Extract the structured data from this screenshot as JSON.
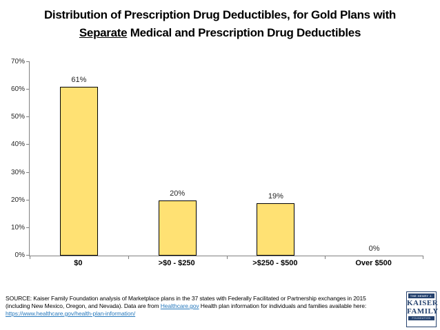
{
  "title": {
    "line1": "Distribution of Prescription Drug Deductibles, for Gold Plans with",
    "line2_underlined": "Separate",
    "line2_rest": " Medical and Prescription Drug Deductibles"
  },
  "chart_data": {
    "type": "bar",
    "categories": [
      "$0",
      ">$0 - $250",
      ">$250 - $500",
      "Over $500"
    ],
    "values": [
      61,
      20,
      19,
      0
    ],
    "data_labels": [
      "61%",
      "20%",
      "19%",
      "0%"
    ],
    "title": "Distribution of Prescription Drug Deductibles, for Gold Plans with Separate Medical and Prescription Drug Deductibles",
    "xlabel": "",
    "ylabel": "",
    "ylim": [
      0,
      70
    ],
    "ytick_step": 10,
    "ytick_labels": [
      "0%",
      "10%",
      "20%",
      "30%",
      "40%",
      "50%",
      "60%",
      "70%"
    ],
    "grid": false,
    "legend": "none",
    "bar_color": "#FFE173",
    "bar_border_color": "#000000",
    "axis_color": "#7F7F7F"
  },
  "source": {
    "line1": "SOURCE: Kaiser Family Foundation analysis of Marketplace plans in the 37 states with Federally Facilitated or Partnership exchanges in 2015",
    "line2_before_link": "(including New Mexico, Oregon, and Nevada). Data are from ",
    "line2_link": "Healthcare.gov",
    "line2_after_link": " Health plan information for individuals and families available here:",
    "line3_link": "https://www.healthcare.gov/health-plan-information/",
    "link_color": "#2779BD"
  },
  "logo": {
    "top": "THE HENRY J.",
    "name1": "KAISER",
    "name2": "FAMILY",
    "bottom": "FOUNDATION",
    "color": "#25426E"
  }
}
